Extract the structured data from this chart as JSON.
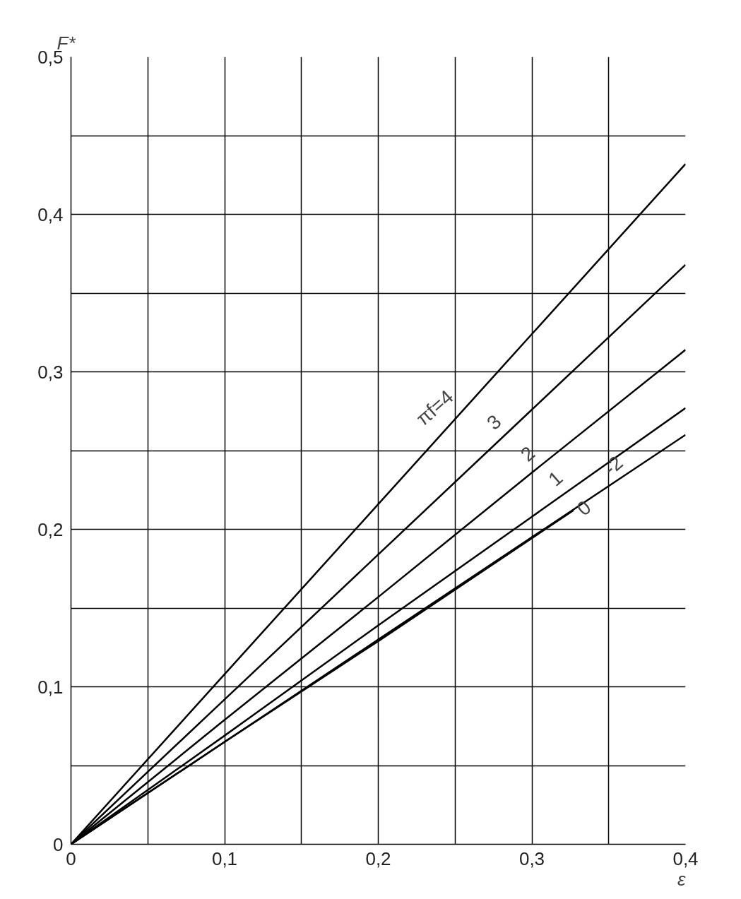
{
  "chart_data": {
    "type": "line",
    "xlabel": "ε",
    "ylabel": "F*",
    "x": [
      0,
      0.1,
      0.2,
      0.3,
      0.4
    ],
    "series": [
      {
        "name": "πf=4",
        "color": "#000000",
        "values": [
          0,
          0.108,
          0.216,
          0.324,
          0.432
        ]
      },
      {
        "name": "3",
        "color": "#000000",
        "values": [
          0,
          0.092,
          0.184,
          0.276,
          0.368
        ]
      },
      {
        "name": "2",
        "color": "#000000",
        "values": [
          0,
          0.079,
          0.157,
          0.236,
          0.314
        ]
      },
      {
        "name": "1",
        "color": "#000000",
        "values": [
          0,
          0.069,
          0.139,
          0.208,
          0.277
        ]
      },
      {
        "name": "0",
        "color": "#000000",
        "x": [
          0,
          0.1,
          0.2,
          0.327
        ],
        "values": [
          0,
          0.065,
          0.129,
          0.212
        ]
      },
      {
        "name": "-2",
        "color": "#000000",
        "values": [
          0,
          0.065,
          0.13,
          0.195,
          0.26
        ]
      }
    ],
    "xlim": [
      0,
      0.4
    ],
    "ylim": [
      0,
      0.5
    ],
    "xticks": [
      {
        "value": 0,
        "label": "0"
      },
      {
        "value": 0.05,
        "label": null
      },
      {
        "value": 0.1,
        "label": "0,1"
      },
      {
        "value": 0.15,
        "label": null
      },
      {
        "value": 0.2,
        "label": "0,2"
      },
      {
        "value": 0.25,
        "label": null
      },
      {
        "value": 0.3,
        "label": "0,3"
      },
      {
        "value": 0.35,
        "label": null
      },
      {
        "value": 0.4,
        "label": "0,4"
      }
    ],
    "yticks": [
      {
        "value": 0,
        "label": "0"
      },
      {
        "value": 0.05,
        "label": null
      },
      {
        "value": 0.1,
        "label": "0,1"
      },
      {
        "value": 0.15,
        "label": null
      },
      {
        "value": 0.2,
        "label": "0,2"
      },
      {
        "value": 0.25,
        "label": null
      },
      {
        "value": 0.3,
        "label": "0,3"
      },
      {
        "value": 0.35,
        "label": null
      },
      {
        "value": 0.4,
        "label": "0,4"
      },
      {
        "value": 0.45,
        "label": null
      },
      {
        "value": 0.5,
        "label": "0,5"
      }
    ],
    "grid": true,
    "marker": "none",
    "line_style": "solid"
  }
}
